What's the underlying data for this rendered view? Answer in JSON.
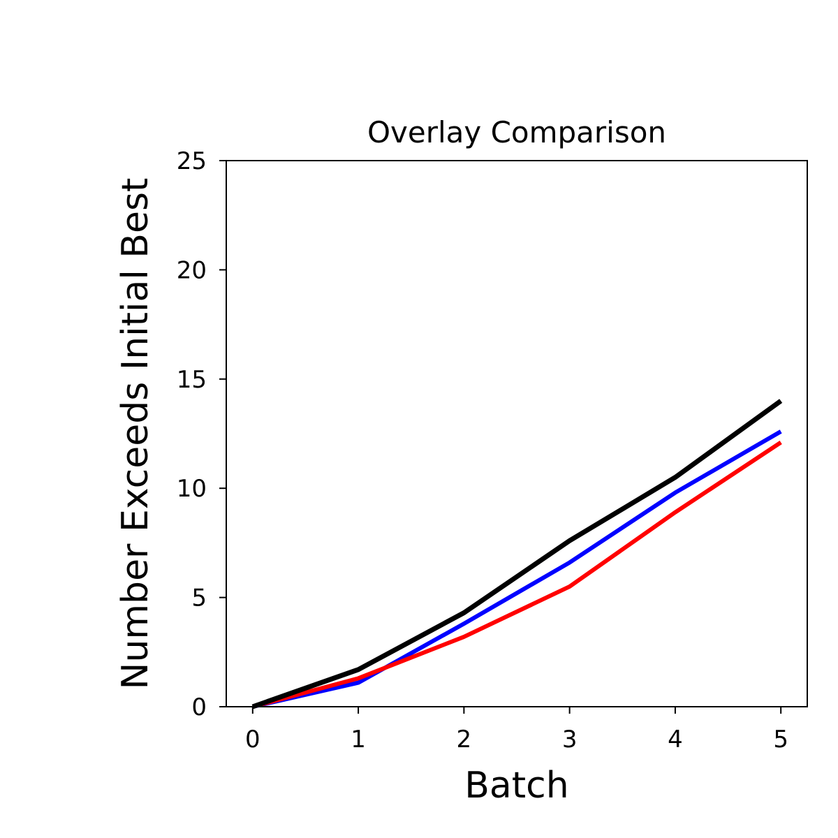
{
  "chart_data": {
    "type": "line",
    "title": "Overlay Comparison",
    "xlabel": "Batch",
    "ylabel": "Number Exceeds Initial Best",
    "x": [
      0,
      1,
      2,
      3,
      4,
      5
    ],
    "xlim": [
      -0.25,
      5.25
    ],
    "ylim": [
      0,
      25
    ],
    "xticks": [
      0,
      1,
      2,
      3,
      4,
      5
    ],
    "yticks": [
      0,
      5,
      10,
      15,
      20,
      25
    ],
    "grid": false,
    "series": [
      {
        "color": "#0000ff",
        "values": [
          0,
          1.1,
          3.8,
          6.6,
          9.8,
          12.6
        ]
      },
      {
        "color": "#ff0000",
        "values": [
          0,
          1.3,
          3.2,
          5.5,
          8.9,
          12.1
        ]
      },
      {
        "color": "#000000",
        "values": [
          0,
          1.7,
          4.3,
          7.6,
          10.5,
          14.0
        ]
      }
    ]
  }
}
